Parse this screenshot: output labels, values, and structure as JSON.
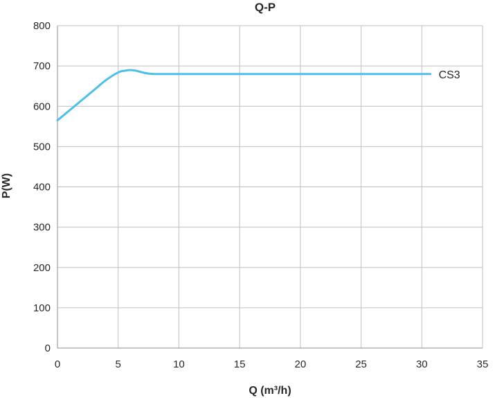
{
  "chart_data": {
    "type": "line",
    "title": "Q-P",
    "xlabel": "Q (m³/h)",
    "ylabel": "P(W)",
    "xlim": [
      0,
      35
    ],
    "ylim": [
      0,
      800
    ],
    "xticks": [
      0,
      5,
      10,
      15,
      20,
      25,
      30,
      35
    ],
    "yticks": [
      0,
      100,
      200,
      300,
      400,
      500,
      600,
      700,
      800
    ],
    "grid": true,
    "legend": "none",
    "series": [
      {
        "name": "CS3",
        "color": "#4dbfea",
        "x": [
          0,
          1,
          2,
          3,
          4,
          5,
          5.5,
          6,
          6.5,
          7,
          7.5,
          8,
          8.5,
          9,
          10,
          15,
          20,
          25,
          30,
          30.7
        ],
        "y": [
          565,
          590,
          615,
          640,
          665,
          684,
          688,
          690,
          688,
          684,
          681,
          680,
          680,
          680,
          680,
          680,
          680,
          680,
          680,
          680
        ]
      }
    ]
  }
}
